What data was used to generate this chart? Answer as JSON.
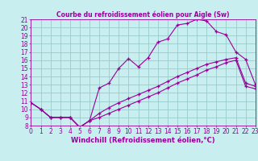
{
  "title": "Courbe du refroidissement éolien pour Aigle (Sw)",
  "xlabel": "Windchill (Refroidissement éolien,°C)",
  "bg_color": "#c8eef0",
  "line_color": "#990099",
  "grid_color": "#99cccc",
  "xlim": [
    0,
    23
  ],
  "ylim": [
    8,
    21
  ],
  "xticks": [
    0,
    1,
    2,
    3,
    4,
    5,
    6,
    7,
    8,
    9,
    10,
    11,
    12,
    13,
    14,
    15,
    16,
    17,
    18,
    19,
    20,
    21,
    22,
    23
  ],
  "yticks": [
    8,
    9,
    10,
    11,
    12,
    13,
    14,
    15,
    16,
    17,
    18,
    19,
    20,
    21
  ],
  "series1_x": [
    0,
    1,
    2,
    3,
    4,
    5,
    6,
    7,
    8,
    9,
    10,
    11,
    12,
    13,
    14,
    15,
    16,
    17,
    18,
    19,
    20,
    21,
    22,
    23
  ],
  "series1_y": [
    10.8,
    10.0,
    9.0,
    9.0,
    9.0,
    7.8,
    8.6,
    12.6,
    13.2,
    15.0,
    16.2,
    15.2,
    16.3,
    18.2,
    18.6,
    20.3,
    20.5,
    21.0,
    20.8,
    19.5,
    19.1,
    17.0,
    16.1,
    13.0
  ],
  "series2_x": [
    0,
    1,
    2,
    3,
    4,
    5,
    6,
    7,
    8,
    9,
    10,
    11,
    12,
    13,
    14,
    15,
    16,
    17,
    18,
    19,
    20,
    21,
    22,
    23
  ],
  "series2_y": [
    10.8,
    10.0,
    9.0,
    9.0,
    9.0,
    7.8,
    8.6,
    9.5,
    10.2,
    10.8,
    11.3,
    11.8,
    12.3,
    12.8,
    13.4,
    14.0,
    14.5,
    15.0,
    15.5,
    15.8,
    16.1,
    16.3,
    13.2,
    12.8
  ],
  "series3_x": [
    0,
    1,
    2,
    3,
    4,
    5,
    6,
    7,
    8,
    9,
    10,
    11,
    12,
    13,
    14,
    15,
    16,
    17,
    18,
    19,
    20,
    21,
    22,
    23
  ],
  "series3_y": [
    10.8,
    10.0,
    9.0,
    9.0,
    9.0,
    7.8,
    8.6,
    9.0,
    9.5,
    10.0,
    10.5,
    11.0,
    11.5,
    12.0,
    12.6,
    13.2,
    13.7,
    14.2,
    14.8,
    15.2,
    15.7,
    16.0,
    12.8,
    12.5
  ],
  "tick_fontsize": 5.5,
  "xlabel_fontsize": 6.0,
  "title_fontsize": 5.5
}
